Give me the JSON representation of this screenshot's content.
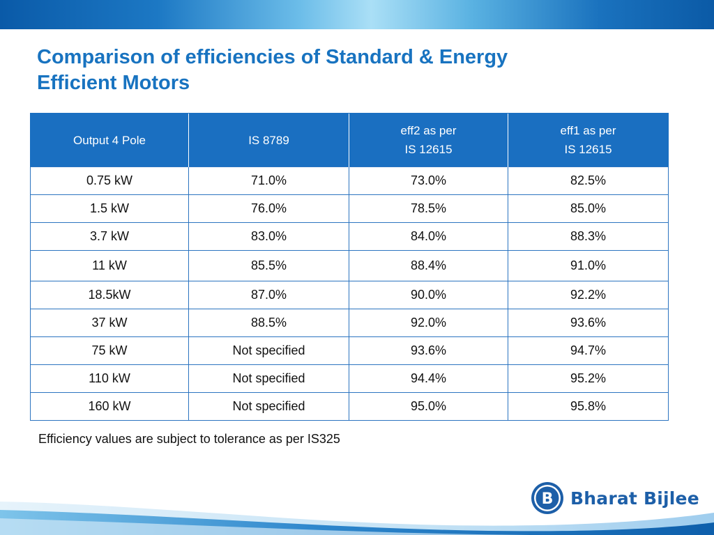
{
  "slide": {
    "title_line1": "Comparison of efficiencies of Standard & Energy",
    "title_line2": "Efficient Motors",
    "note": "Efficiency values are subject to tolerance as per IS325"
  },
  "table": {
    "headers": [
      {
        "line1": "Output 4 Pole",
        "line2": ""
      },
      {
        "line1": "IS 8789",
        "line2": ""
      },
      {
        "line1": "eff2 as per",
        "line2": "IS 12615"
      },
      {
        "line1": "eff1 as per",
        "line2": "IS 12615"
      }
    ],
    "rows": [
      [
        "0.75 kW",
        "71.0%",
        "73.0%",
        "82.5%"
      ],
      [
        "1.5 kW",
        "76.0%",
        "78.5%",
        "85.0%"
      ],
      [
        "3.7 kW",
        "83.0%",
        "84.0%",
        "88.3%"
      ],
      [
        "11 kW",
        "85.5%",
        "88.4%",
        "91.0%"
      ],
      [
        "18.5kW",
        "87.0%",
        "90.0%",
        "92.2%"
      ],
      [
        "37 kW",
        "88.5%",
        "92.0%",
        "93.6%"
      ],
      [
        "75 kW",
        "Not specified",
        "93.6%",
        "94.7%"
      ],
      [
        "110 kW",
        "Not specified",
        "94.4%",
        "95.2%"
      ],
      [
        "160 kW",
        "Not specified",
        "95.0%",
        "95.8%"
      ]
    ]
  },
  "logo": {
    "mark": "B",
    "text": "Bharat Bijlee"
  },
  "colors": {
    "title": "#1873c0",
    "header_bg": "#1a6fc1",
    "table_border": "#2b74c0",
    "brand": "#1d5fa8"
  }
}
